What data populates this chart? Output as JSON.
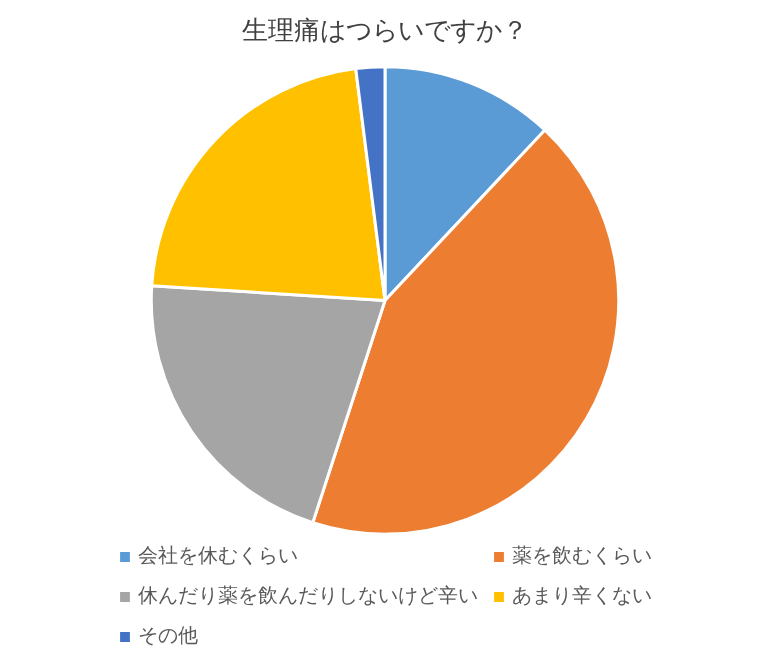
{
  "chart_data": {
    "type": "pie",
    "title": "生理痛はつらいですか？",
    "categories": [
      "会社を休むくらい",
      "薬を飲むくらい",
      "休んだり薬を飲んだりしないけど辛い",
      "あまり辛くない",
      "その他"
    ],
    "values": [
      12,
      43,
      21,
      22,
      2
    ],
    "colors": [
      "#5b9bd5",
      "#ed7d31",
      "#a5a5a5",
      "#ffc000",
      "#4472c4"
    ],
    "legend": "bottom"
  }
}
